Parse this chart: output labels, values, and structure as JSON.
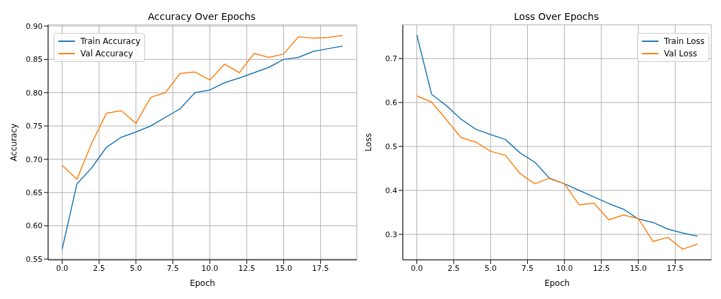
{
  "chart_data": [
    {
      "type": "line",
      "title": "Accuracy Over Epochs",
      "xlabel": "Epoch",
      "ylabel": "Accuracy",
      "x": [
        0,
        1,
        2,
        3,
        4,
        5,
        6,
        7,
        8,
        9,
        10,
        11,
        12,
        13,
        14,
        15,
        16,
        17,
        18,
        19
      ],
      "series": [
        {
          "name": "Train Accuracy",
          "color": "#1f77b4",
          "values": [
            0.565,
            0.663,
            0.687,
            0.718,
            0.733,
            0.741,
            0.75,
            0.763,
            0.776,
            0.8,
            0.804,
            0.815,
            0.822,
            0.83,
            0.838,
            0.85,
            0.853,
            0.862,
            0.866,
            0.87
          ]
        },
        {
          "name": "Val Accuracy",
          "color": "#ff7f0e",
          "values": [
            0.691,
            0.67,
            0.724,
            0.769,
            0.773,
            0.754,
            0.793,
            0.8,
            0.829,
            0.831,
            0.819,
            0.843,
            0.83,
            0.859,
            0.853,
            0.858,
            0.884,
            0.882,
            0.883,
            0.886
          ]
        }
      ],
      "xlim": [
        -0.95,
        19.95
      ],
      "xticks": [
        {
          "value": 0,
          "label": "0.0"
        },
        {
          "value": 2.5,
          "label": "2.5"
        },
        {
          "value": 5,
          "label": "5.0"
        },
        {
          "value": 7.5,
          "label": "7.5"
        },
        {
          "value": 10,
          "label": "10.0"
        },
        {
          "value": 12.5,
          "label": "12.5"
        },
        {
          "value": 15,
          "label": "15.0"
        },
        {
          "value": 17.5,
          "label": "17.5"
        }
      ],
      "ylim": [
        0.549,
        0.902
      ],
      "yticks": [
        {
          "value": 0.55,
          "label": "0.55"
        },
        {
          "value": 0.6,
          "label": "0.60"
        },
        {
          "value": 0.65,
          "label": "0.65"
        },
        {
          "value": 0.7,
          "label": "0.70"
        },
        {
          "value": 0.75,
          "label": "0.75"
        },
        {
          "value": 0.8,
          "label": "0.80"
        },
        {
          "value": 0.85,
          "label": "0.85"
        },
        {
          "value": 0.9,
          "label": "0.90"
        }
      ],
      "grid": true,
      "legend": "top left",
      "marker": "none",
      "line_style": "solid"
    },
    {
      "type": "line",
      "title": "Loss Over Epochs",
      "xlabel": "Epoch",
      "ylabel": "Loss",
      "x": [
        0,
        1,
        2,
        3,
        4,
        5,
        6,
        7,
        8,
        9,
        10,
        11,
        12,
        13,
        14,
        15,
        16,
        17,
        18,
        19
      ],
      "series": [
        {
          "name": "Train Loss",
          "color": "#1f77b4",
          "values": [
            0.754,
            0.619,
            0.593,
            0.562,
            0.539,
            0.527,
            0.516,
            0.485,
            0.464,
            0.427,
            0.415,
            0.4,
            0.385,
            0.37,
            0.357,
            0.335,
            0.327,
            0.312,
            0.303,
            0.296
          ]
        },
        {
          "name": "Val Loss",
          "color": "#ff7f0e",
          "values": [
            0.615,
            0.601,
            0.561,
            0.52,
            0.51,
            0.489,
            0.48,
            0.438,
            0.415,
            0.428,
            0.415,
            0.367,
            0.371,
            0.333,
            0.344,
            0.336,
            0.284,
            0.293,
            0.266,
            0.278
          ]
        }
      ],
      "xlim": [
        -0.95,
        19.95
      ],
      "xticks": [
        {
          "value": 0,
          "label": "0.0"
        },
        {
          "value": 2.5,
          "label": "2.5"
        },
        {
          "value": 5,
          "label": "5.0"
        },
        {
          "value": 7.5,
          "label": "7.5"
        },
        {
          "value": 10,
          "label": "10.0"
        },
        {
          "value": 12.5,
          "label": "12.5"
        },
        {
          "value": 15,
          "label": "15.0"
        },
        {
          "value": 17.5,
          "label": "17.5"
        }
      ],
      "ylim": [
        0.242,
        0.777
      ],
      "yticks": [
        0.3,
        0.4,
        0.5,
        0.6,
        0.7
      ],
      "grid": true,
      "legend": "top right",
      "marker": "none",
      "line_style": "solid"
    }
  ]
}
